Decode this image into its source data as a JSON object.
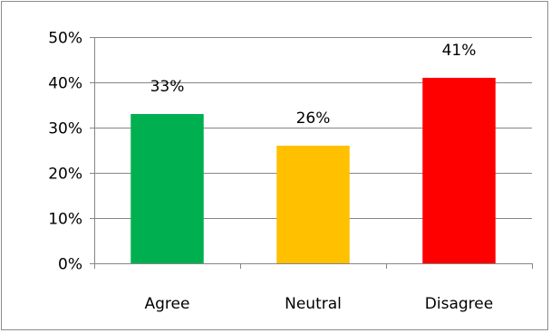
{
  "chart_data": {
    "type": "bar",
    "categories": [
      "Agree",
      "Neutral",
      "Disagree"
    ],
    "values": [
      33,
      26,
      41
    ],
    "data_labels": [
      "33%",
      "26%",
      "41%"
    ],
    "colors": [
      "#00b050",
      "#ffc000",
      "#ff0000"
    ],
    "ylim": [
      0,
      50
    ],
    "yticks": [
      0,
      10,
      20,
      30,
      40,
      50
    ],
    "ytick_labels": [
      "0%",
      "10%",
      "20%",
      "30%",
      "40%",
      "50%"
    ],
    "grid": true,
    "legend": "none",
    "grid_color": "#868686",
    "axis_color": "#868686"
  }
}
